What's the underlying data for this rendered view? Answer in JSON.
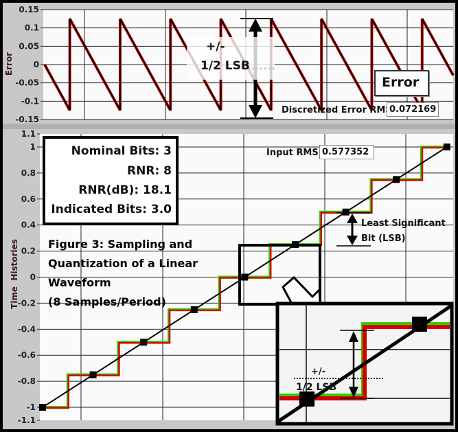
{
  "chart_data": [
    {
      "type": "line",
      "ylabel": "Error",
      "ylim": [
        -0.15,
        0.15
      ],
      "yticks": [
        "0.15",
        "0.1",
        "0.05",
        "0",
        "-0.05",
        "-0.1",
        "-0.15"
      ],
      "grid": true,
      "series": [
        {
          "shape": "sawtooth",
          "start": 0,
          "min": -0.125,
          "max": 0.125,
          "periods_visible": 8.2,
          "color": "#d40000"
        }
      ],
      "annotations": {
        "half_lsb_top": "+/-",
        "half_lsb_bottom": "1/2 LSB",
        "legend_box": "Error",
        "rms_label": "Discretized Error RMS",
        "rms_value": "0.072169"
      }
    },
    {
      "type": "line",
      "ylabel": "Time  Histories",
      "ylim": [
        -1.1,
        1.1
      ],
      "yticks": [
        "1.1",
        "1",
        "0.8",
        "0.6",
        "0.4",
        "0.2",
        "0",
        "-0.2",
        "-0.4",
        "-0.6",
        "-0.8",
        "-1",
        "-1.1"
      ],
      "grid": true,
      "samples_x": [
        0,
        1,
        2,
        3,
        4,
        5,
        6,
        7,
        8
      ],
      "samples_y": [
        -1,
        -0.75,
        -0.5,
        -0.25,
        0,
        0.25,
        0.5,
        0.75,
        1
      ],
      "series": [
        {
          "kind": "input linear ramp",
          "y_start": -1,
          "y_end": 1,
          "color": "#000000"
        },
        {
          "kind": "quantized staircase",
          "color": "#d40000"
        },
        {
          "kind": "quantized staircase",
          "color": "#33cc00"
        }
      ],
      "info_box": [
        "Nominal Bits: 3",
        "RNR: 8",
        "RNR(dB): 18.1",
        "Indicated Bits: 3.0"
      ],
      "caption": [
        "Figure 3: Sampling and",
        "Quantization of a Linear",
        "Waveform",
        "(8 Samples/Period)"
      ],
      "input_rms_label": "Input RMS",
      "input_rms_value": "0.577352",
      "lsb_label": [
        "Least Significant",
        "Bit (LSB)"
      ],
      "inset_label_top": "+/-",
      "inset_label_bottom": "1/2 LSB"
    }
  ]
}
